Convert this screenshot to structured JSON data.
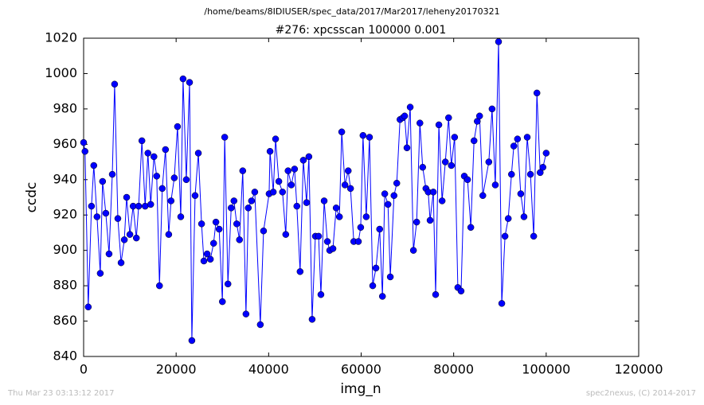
{
  "chart_data": {
    "type": "line",
    "suptitle": "/home/beams/8IDIUSER/spec_data/2017/Mar2017/leheny20170321",
    "title": "#276: xpcsscan 100000 0.001",
    "xlabel": "img_n",
    "ylabel": "ccdc",
    "footer_left": "Thu Mar 23 03:13:12 2017",
    "footer_right": "spec2nexus, (C) 2014-2017",
    "color": "#0000ff",
    "marker": true,
    "xlim": [
      0,
      120000
    ],
    "xticks": [
      0,
      20000,
      40000,
      60000,
      80000,
      100000,
      120000
    ],
    "ylim": [
      840,
      1020
    ],
    "yticks": [
      840,
      860,
      880,
      900,
      920,
      940,
      960,
      980,
      1000,
      1020
    ],
    "x": [
      0,
      300,
      1000,
      1700,
      2200,
      2900,
      3600,
      4100,
      4800,
      5500,
      6200,
      6700,
      7400,
      8100,
      8800,
      9300,
      10000,
      10700,
      11400,
      11900,
      12600,
      13300,
      13900,
      14500,
      15200,
      15800,
      16400,
      17000,
      17700,
      18400,
      18900,
      19600,
      20300,
      21000,
      21500,
      22200,
      22900,
      23400,
      24100,
      24800,
      25500,
      26000,
      26700,
      27400,
      28100,
      28600,
      29300,
      30000,
      30500,
      31200,
      31900,
      32500,
      33100,
      33700,
      34400,
      35100,
      35600,
      36300,
      37000,
      38200,
      38900,
      40100,
      40300,
      41000,
      41500,
      42200,
      43000,
      43700,
      44200,
      44900,
      45600,
      46100,
      46800,
      47500,
      48200,
      48700,
      49400,
      50100,
      50800,
      51300,
      52000,
      52700,
      53200,
      53900,
      54600,
      55300,
      55800,
      56500,
      57200,
      57700,
      58400,
      59400,
      59900,
      60400,
      61100,
      61800,
      62500,
      63200,
      64000,
      64600,
      65100,
      65800,
      66300,
      67100,
      67700,
      68400,
      69000,
      69400,
      69900,
      70600,
      71300,
      72000,
      72700,
      73300,
      74000,
      74500,
      74900,
      75600,
      76100,
      76800,
      77500,
      78200,
      78900,
      79500,
      80200,
      80900,
      81600,
      82300,
      83000,
      83700,
      84400,
      85100,
      85600,
      86300,
      87600,
      88300,
      89000,
      89700,
      90400,
      91100,
      91800,
      92500,
      93000,
      93800,
      94500,
      95200,
      95900,
      96600,
      97300,
      98000,
      98700,
      99300,
      100000
    ],
    "values": [
      961,
      956,
      868,
      925,
      948,
      919,
      887,
      939,
      921,
      898,
      943,
      994,
      918,
      893,
      906,
      930,
      909,
      925,
      907,
      925,
      962,
      925,
      955,
      926,
      953,
      942,
      880,
      935,
      957,
      909,
      928,
      941,
      970,
      919,
      997,
      940,
      995,
      849,
      931,
      955,
      915,
      894,
      898,
      895,
      904,
      916,
      912,
      871,
      964,
      881,
      924,
      928,
      915,
      906,
      945,
      864,
      924,
      928,
      933,
      858,
      911,
      932,
      956,
      933,
      963,
      939,
      933,
      909,
      945,
      937,
      946,
      925,
      888,
      951,
      927,
      953,
      861,
      908,
      908,
      875,
      928,
      905,
      900,
      901,
      924,
      919,
      967,
      937,
      945,
      935,
      905,
      905,
      913,
      965,
      919,
      964,
      880,
      890,
      912,
      874,
      932,
      926,
      885,
      931,
      938,
      974,
      975,
      976,
      958,
      981,
      900,
      916,
      972,
      947,
      935,
      933,
      917,
      933,
      875,
      971,
      928,
      950,
      975,
      948,
      964,
      879,
      877,
      942,
      940,
      913,
      962,
      973,
      976,
      931,
      950,
      980,
      937,
      1018,
      870,
      908,
      918,
      943,
      959,
      963,
      932,
      919,
      964,
      943,
      908,
      989,
      944,
      947,
      955
    ]
  }
}
